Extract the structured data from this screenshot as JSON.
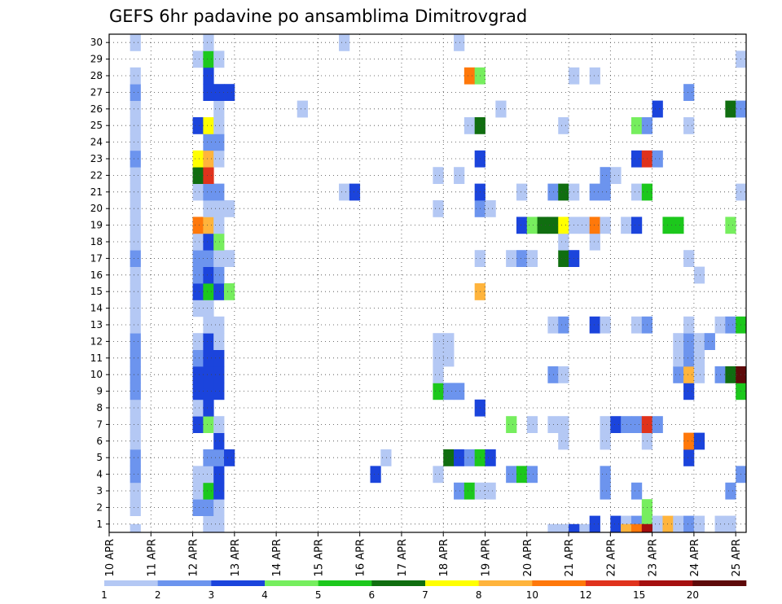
{
  "chart_data": {
    "type": "heatmap",
    "title": "GEFS 6hr padavine po ansamblima Dimitrovgrad",
    "xlabel": "",
    "ylabel": "",
    "y_ticks": [
      "1",
      "2",
      "3",
      "4",
      "5",
      "6",
      "7",
      "8",
      "9",
      "10",
      "11",
      "12",
      "13",
      "14",
      "15",
      "16",
      "17",
      "18",
      "19",
      "20",
      "21",
      "22",
      "23",
      "24",
      "25",
      "26",
      "27",
      "28",
      "29",
      "30"
    ],
    "x_ticks": [
      "10 APR",
      "11 APR",
      "12 APR",
      "13 APR",
      "14 APR",
      "15 APR",
      "16 APR",
      "17 APR",
      "18 APR",
      "19 APR",
      "20 APR",
      "21 APR",
      "22 APR",
      "23 APR",
      "24 APR",
      "25 APR"
    ],
    "grid": true,
    "legend": {
      "placement": "bottom",
      "colors": [
        "#b4c8f4",
        "#6c94ee",
        "#1b44dc",
        "#76ee5e",
        "#1cc81c",
        "#106e10",
        "#ffff00",
        "#ffb43c",
        "#ff780a",
        "#e0321c",
        "#a50f0f",
        "#5e0a0a"
      ],
      "labels": [
        "1",
        "2",
        "3",
        "4",
        "5",
        "6",
        "7",
        "8",
        "10",
        "12",
        "15",
        "20"
      ]
    }
  }
}
